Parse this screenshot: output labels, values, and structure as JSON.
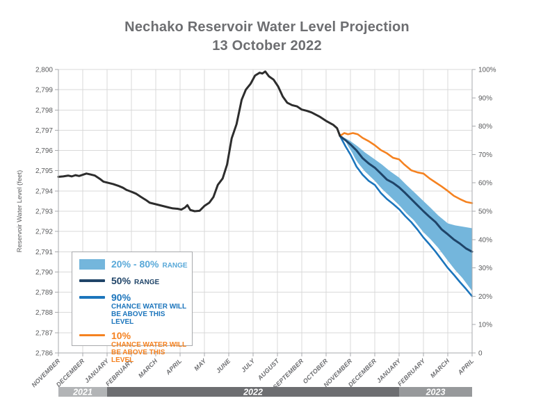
{
  "title": {
    "line1": "Nechako Reservoir Water Level Projection",
    "line2": "13 October 2022"
  },
  "colors": {
    "historical": "#2d2d2d",
    "band": "#74b6dc",
    "band_text": "#58a8d8",
    "p50": "#1f4468",
    "p90": "#1c75bc",
    "p10": "#f58220",
    "grid": "#d9d9d9",
    "axis": "#a7a9ac",
    "tick_text": "#58595b",
    "title_text": "#6d6e71"
  },
  "legend": {
    "range_main": "20% - 80%",
    "range_suffix": "RANGE",
    "p50_main": "50%",
    "p50_suffix": "RANGE",
    "p90_main": "90%",
    "p90_sub1": "CHANCE WATER WILL",
    "p90_sub2": "BE ABOVE THIS LEVEL",
    "p10_main": "10%",
    "p10_sub1": "CHANCE WATER WILL",
    "p10_sub2": "BE ABOVE THIS LEVEL"
  },
  "chart_data": {
    "type": "line",
    "title": "Nechako Reservoir Water Level Projection 13 October 2022",
    "ylabel_left": "Reservoir Water Level (feet)",
    "grid": true,
    "y_left": {
      "min": 2786,
      "max": 2800,
      "ticks": [
        "2,786",
        "2,787",
        "2,788",
        "2,789",
        "2,790",
        "2,791",
        "2,792",
        "2,793",
        "2,794",
        "2,795",
        "2,796",
        "2,797",
        "2,798",
        "2,799",
        "2,800"
      ]
    },
    "y_right": {
      "min": 0,
      "max": 100,
      "ticks": [
        "0",
        "10%",
        "20%",
        "30%",
        "40%",
        "50%",
        "60%",
        "70%",
        "80%",
        "90%",
        "100%"
      ]
    },
    "x_axis": {
      "months": [
        "NOVEMBER",
        "DECEMBER",
        "JANUARY",
        "FEBRUARY",
        "MARCH",
        "APRIL",
        "MAY",
        "JUNE",
        "JULY",
        "AUGUST",
        "SEPTEMBER",
        "OCTOBER",
        "NOVEMBER",
        "DECEMBER",
        "JANUARY",
        "FEBRUARY",
        "MARCH",
        "APRIL"
      ],
      "year_bars": [
        {
          "label": "2021",
          "from": 0,
          "to": 2,
          "color": "#b2b4b6"
        },
        {
          "label": "2022",
          "from": 2,
          "to": 14,
          "color": "#6d6e71"
        },
        {
          "label": "2023",
          "from": 14,
          "to": 17,
          "color": "#97999b"
        }
      ]
    },
    "series": [
      {
        "name": "range-20-80",
        "type": "band",
        "color": "#74b6dc",
        "top": [
          [
            11.57,
            2796.72
          ],
          [
            11.8,
            2796.6
          ],
          [
            12.0,
            2796.46
          ],
          [
            12.3,
            2796.2
          ],
          [
            12.6,
            2795.9
          ],
          [
            13.0,
            2795.56
          ],
          [
            13.3,
            2795.3
          ],
          [
            13.6,
            2795.0
          ],
          [
            14.0,
            2794.66
          ],
          [
            14.3,
            2794.3
          ],
          [
            14.6,
            2793.96
          ],
          [
            15.0,
            2793.5
          ],
          [
            15.3,
            2793.16
          ],
          [
            15.6,
            2792.8
          ],
          [
            16.0,
            2792.4
          ],
          [
            16.3,
            2792.3
          ],
          [
            16.6,
            2792.24
          ],
          [
            17.0,
            2792.16
          ]
        ],
        "bottom": [
          [
            11.57,
            2796.72
          ],
          [
            11.8,
            2796.3
          ],
          [
            12.0,
            2795.96
          ],
          [
            12.3,
            2795.4
          ],
          [
            12.6,
            2794.96
          ],
          [
            13.0,
            2794.5
          ],
          [
            13.3,
            2794.1
          ],
          [
            13.6,
            2793.76
          ],
          [
            14.0,
            2793.3
          ],
          [
            14.3,
            2792.9
          ],
          [
            14.6,
            2792.56
          ],
          [
            15.0,
            2791.96
          ],
          [
            15.3,
            2791.6
          ],
          [
            15.6,
            2791.2
          ],
          [
            16.0,
            2790.56
          ],
          [
            16.3,
            2790.1
          ],
          [
            16.6,
            2789.7
          ],
          [
            17.0,
            2789.06
          ]
        ]
      },
      {
        "name": "p90-chance-water-above",
        "type": "line",
        "color": "#1c75bc",
        "width": 2.6,
        "halo": 7,
        "points": [
          [
            11.57,
            2796.72
          ],
          [
            11.8,
            2796.2
          ],
          [
            12.0,
            2795.8
          ],
          [
            12.25,
            2795.2
          ],
          [
            12.5,
            2794.8
          ],
          [
            12.75,
            2794.5
          ],
          [
            13.0,
            2794.3
          ],
          [
            13.25,
            2793.9
          ],
          [
            13.5,
            2793.6
          ],
          [
            13.75,
            2793.36
          ],
          [
            14.0,
            2793.1
          ],
          [
            14.25,
            2792.76
          ],
          [
            14.5,
            2792.46
          ],
          [
            14.75,
            2792.1
          ],
          [
            15.0,
            2791.7
          ],
          [
            15.25,
            2791.36
          ],
          [
            15.5,
            2791.0
          ],
          [
            15.75,
            2790.6
          ],
          [
            16.0,
            2790.2
          ],
          [
            16.25,
            2789.86
          ],
          [
            16.5,
            2789.5
          ],
          [
            16.75,
            2789.16
          ],
          [
            17.0,
            2788.8
          ]
        ]
      },
      {
        "name": "p50-range",
        "type": "line",
        "color": "#1f4468",
        "width": 3,
        "points": [
          [
            11.57,
            2796.72
          ],
          [
            11.8,
            2796.5
          ],
          [
            12.0,
            2796.3
          ],
          [
            12.25,
            2796.0
          ],
          [
            12.5,
            2795.62
          ],
          [
            12.75,
            2795.36
          ],
          [
            13.0,
            2795.15
          ],
          [
            13.25,
            2794.86
          ],
          [
            13.5,
            2794.56
          ],
          [
            13.75,
            2794.4
          ],
          [
            14.0,
            2794.18
          ],
          [
            14.25,
            2793.9
          ],
          [
            14.5,
            2793.6
          ],
          [
            14.75,
            2793.3
          ],
          [
            15.0,
            2793.0
          ],
          [
            15.25,
            2792.72
          ],
          [
            15.5,
            2792.46
          ],
          [
            15.75,
            2792.1
          ],
          [
            16.0,
            2791.86
          ],
          [
            16.25,
            2791.6
          ],
          [
            16.5,
            2791.4
          ],
          [
            16.75,
            2791.16
          ],
          [
            17.0,
            2791.0
          ]
        ]
      },
      {
        "name": "p10-chance-water-above",
        "type": "line",
        "color": "#f58220",
        "width": 2.6,
        "points": [
          [
            11.57,
            2796.72
          ],
          [
            11.75,
            2796.86
          ],
          [
            11.9,
            2796.8
          ],
          [
            12.1,
            2796.86
          ],
          [
            12.3,
            2796.8
          ],
          [
            12.5,
            2796.62
          ],
          [
            12.75,
            2796.46
          ],
          [
            13.0,
            2796.26
          ],
          [
            13.25,
            2796.02
          ],
          [
            13.5,
            2795.86
          ],
          [
            13.75,
            2795.64
          ],
          [
            14.0,
            2795.56
          ],
          [
            14.2,
            2795.32
          ],
          [
            14.5,
            2795.02
          ],
          [
            14.75,
            2794.92
          ],
          [
            15.0,
            2794.86
          ],
          [
            15.25,
            2794.62
          ],
          [
            15.5,
            2794.42
          ],
          [
            15.75,
            2794.22
          ],
          [
            16.0,
            2794.0
          ],
          [
            16.25,
            2793.76
          ],
          [
            16.5,
            2793.6
          ],
          [
            16.75,
            2793.46
          ],
          [
            17.0,
            2793.4
          ]
        ]
      },
      {
        "name": "historical-water-level",
        "type": "line",
        "color": "#2d2d2d",
        "width": 3,
        "points": [
          [
            0,
            2794.7
          ],
          [
            0.2,
            2794.72
          ],
          [
            0.4,
            2794.76
          ],
          [
            0.55,
            2794.72
          ],
          [
            0.7,
            2794.78
          ],
          [
            0.85,
            2794.74
          ],
          [
            1.0,
            2794.8
          ],
          [
            1.15,
            2794.86
          ],
          [
            1.3,
            2794.82
          ],
          [
            1.5,
            2794.76
          ],
          [
            1.7,
            2794.6
          ],
          [
            1.85,
            2794.46
          ],
          [
            2.05,
            2794.4
          ],
          [
            2.25,
            2794.34
          ],
          [
            2.45,
            2794.26
          ],
          [
            2.65,
            2794.16
          ],
          [
            2.8,
            2794.05
          ],
          [
            3.0,
            2793.96
          ],
          [
            3.2,
            2793.86
          ],
          [
            3.4,
            2793.7
          ],
          [
            3.6,
            2793.55
          ],
          [
            3.75,
            2793.42
          ],
          [
            3.95,
            2793.36
          ],
          [
            4.15,
            2793.3
          ],
          [
            4.35,
            2793.24
          ],
          [
            4.55,
            2793.18
          ],
          [
            4.7,
            2793.14
          ],
          [
            4.9,
            2793.12
          ],
          [
            5.05,
            2793.08
          ],
          [
            5.2,
            2793.18
          ],
          [
            5.3,
            2793.3
          ],
          [
            5.42,
            2793.06
          ],
          [
            5.6,
            2793.0
          ],
          [
            5.8,
            2793.02
          ],
          [
            6.0,
            2793.26
          ],
          [
            6.2,
            2793.42
          ],
          [
            6.37,
            2793.7
          ],
          [
            6.55,
            2794.3
          ],
          [
            6.75,
            2794.62
          ],
          [
            6.93,
            2795.3
          ],
          [
            7.12,
            2796.6
          ],
          [
            7.32,
            2797.3
          ],
          [
            7.53,
            2798.5
          ],
          [
            7.7,
            2799.0
          ],
          [
            7.9,
            2799.3
          ],
          [
            8.08,
            2799.7
          ],
          [
            8.27,
            2799.84
          ],
          [
            8.38,
            2799.8
          ],
          [
            8.5,
            2799.9
          ],
          [
            8.65,
            2799.66
          ],
          [
            8.84,
            2799.5
          ],
          [
            9.03,
            2799.16
          ],
          [
            9.22,
            2798.66
          ],
          [
            9.4,
            2798.36
          ],
          [
            9.6,
            2798.24
          ],
          [
            9.8,
            2798.18
          ],
          [
            10.0,
            2798.02
          ],
          [
            10.2,
            2797.96
          ],
          [
            10.4,
            2797.88
          ],
          [
            10.75,
            2797.66
          ],
          [
            11.0,
            2797.46
          ],
          [
            11.3,
            2797.26
          ],
          [
            11.45,
            2797.1
          ],
          [
            11.57,
            2796.72
          ]
        ]
      }
    ]
  }
}
